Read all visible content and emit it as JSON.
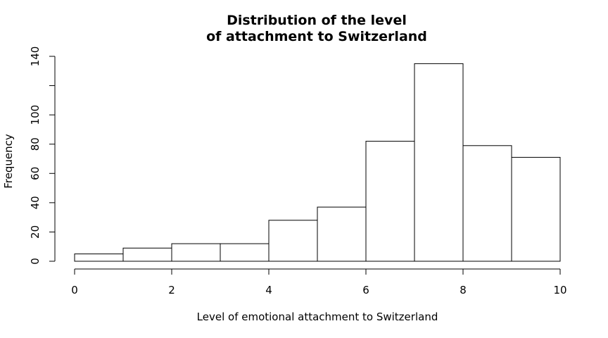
{
  "chart_data": {
    "type": "bar",
    "title_lines": [
      "Distribution of the level",
      "of attachment to Switzerland"
    ],
    "xlabel": "Level of emotional attachment to Switzerland",
    "ylabel": "Frequency",
    "bin_edges": [
      0,
      1,
      2,
      3,
      4,
      5,
      6,
      7,
      8,
      9,
      10
    ],
    "values": [
      5,
      9,
      12,
      12,
      28,
      37,
      82,
      135,
      79,
      71
    ],
    "xlim": [
      0,
      10
    ],
    "ylim": [
      0,
      140
    ],
    "x_ticks": [
      0,
      2,
      4,
      6,
      8,
      10
    ],
    "x_tick_labels": [
      "0",
      "2",
      "4",
      "6",
      "8",
      "10"
    ],
    "y_ticks": [
      0,
      20,
      40,
      60,
      80,
      100,
      120,
      140
    ],
    "y_tick_labels": [
      "0",
      "20",
      "40",
      "60",
      "80",
      "100",
      "",
      "140"
    ],
    "grid": false,
    "legend": "none",
    "bar_fill": "#ffffff",
    "bar_stroke": "#000000"
  }
}
